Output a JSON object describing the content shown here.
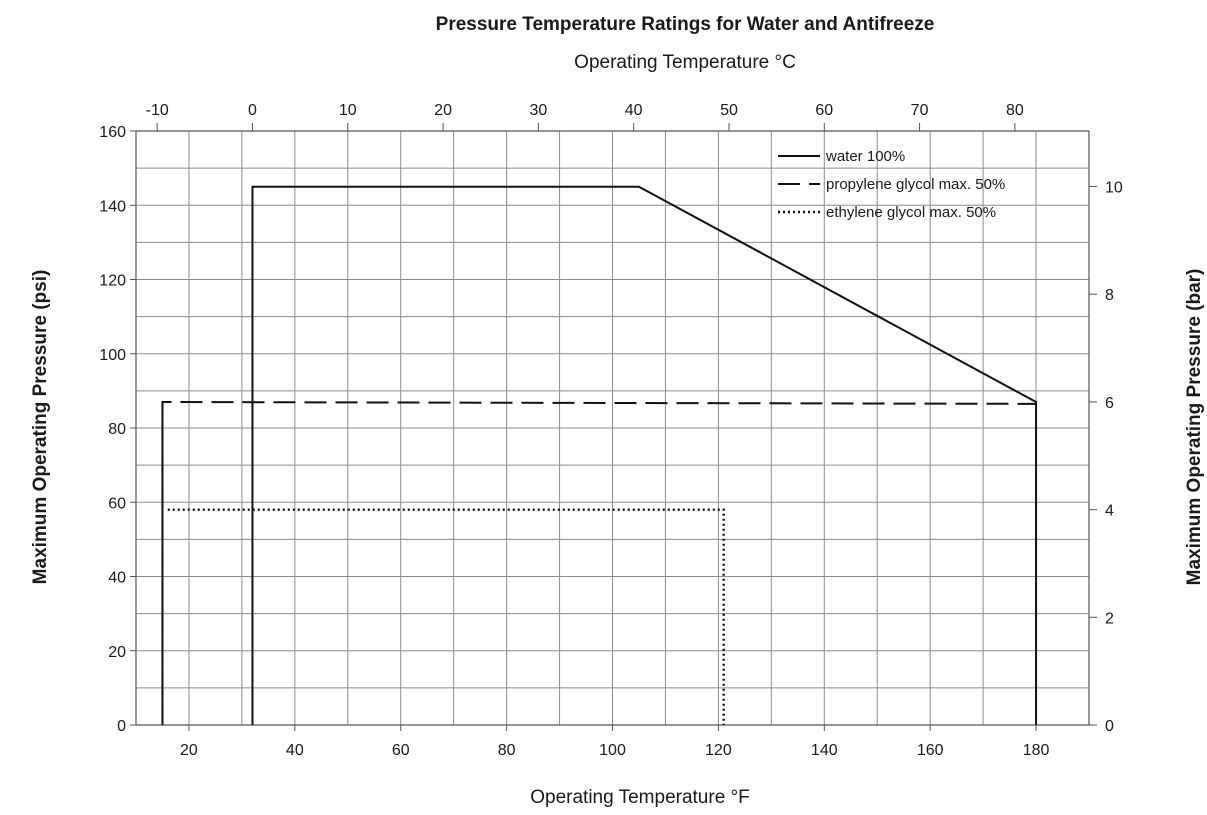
{
  "chart_data": {
    "type": "line",
    "title": "Pressure Temperature Ratings for Water and Antifreeze",
    "xlabel": "Operating Temperature °F",
    "x2label": "Operating Temperature °C",
    "ylabel": "Maximum Operating Pressure (psi)",
    "y2label": "Maximum Operating Pressure (bar)",
    "xlim": [
      10,
      190
    ],
    "ylim": [
      0,
      160
    ],
    "x_ticks": [
      20,
      40,
      60,
      80,
      100,
      120,
      140,
      160,
      180
    ],
    "y_ticks": [
      0,
      20,
      40,
      60,
      80,
      100,
      120,
      140,
      160
    ],
    "x2_ticks": [
      -10,
      0,
      10,
      20,
      30,
      40,
      50,
      60,
      70,
      80
    ],
    "y2_ticks": [
      0,
      2,
      4,
      6,
      8,
      10
    ],
    "grid": true,
    "legend_position": "top-right",
    "series": [
      {
        "name": "water 100%",
        "style": "solid",
        "x": [
          32,
          32,
          105,
          180,
          180
        ],
        "y": [
          0,
          145,
          145,
          87,
          0
        ]
      },
      {
        "name": "propylene glycol max. 50%",
        "style": "dashed",
        "x": [
          15,
          15,
          180
        ],
        "y": [
          0,
          87,
          86.5
        ]
      },
      {
        "name": "ethylene glycol max. 50%",
        "style": "dotted",
        "x": [
          16,
          121,
          121
        ],
        "y": [
          58,
          58,
          0
        ]
      }
    ],
    "extra_lines": [
      {
        "style": "solid",
        "x": [
          15,
          15
        ],
        "y": [
          0,
          87
        ]
      }
    ]
  }
}
